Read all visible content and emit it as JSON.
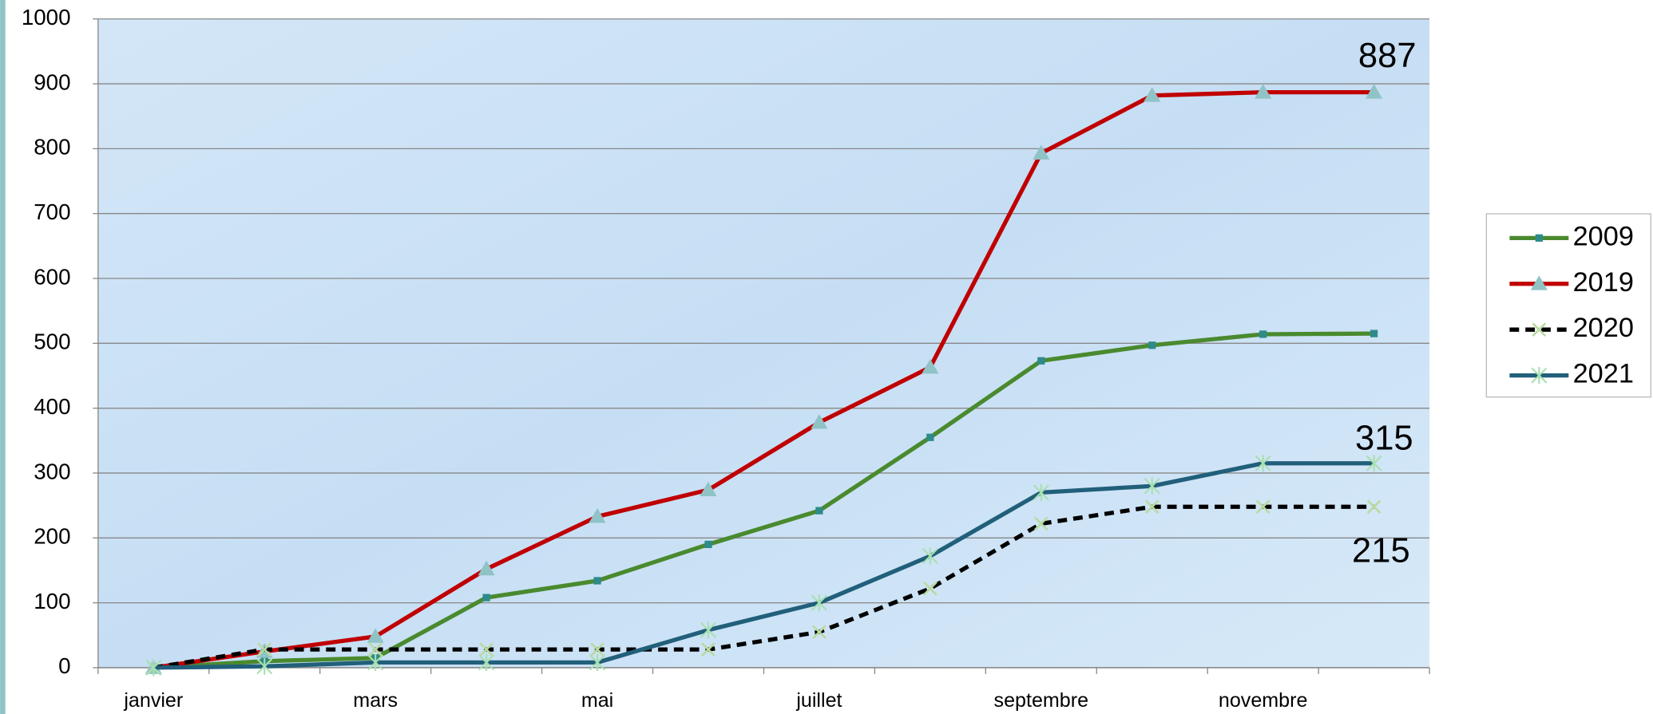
{
  "chart_data": {
    "type": "line",
    "categories": [
      "janvier",
      null,
      "mars",
      null,
      "mai",
      null,
      "juillet",
      null,
      "septembre",
      null,
      "novembre",
      null
    ],
    "series": [
      {
        "name": "2009",
        "color": "#4a8a2f",
        "marker": "square",
        "marker_color": "#2e8b8b",
        "dash": false,
        "values": [
          0,
          10,
          15,
          108,
          134,
          190,
          242,
          355,
          473,
          497,
          514,
          515
        ]
      },
      {
        "name": "2019",
        "color": "#c00000",
        "marker": "triangle",
        "marker_color": "#8fc3c6",
        "dash": false,
        "values": [
          0,
          25,
          48,
          152,
          233,
          274,
          378,
          463,
          793,
          882,
          887,
          887
        ]
      },
      {
        "name": "2020",
        "color": "#000000",
        "marker": "x",
        "marker_color": "#b9dba0",
        "dash": true,
        "values": [
          0,
          28,
          28,
          28,
          28,
          28,
          55,
          122,
          222,
          248,
          248,
          248
        ]
      },
      {
        "name": "2021",
        "color": "#215f7a",
        "marker": "star",
        "marker_color": "#a8e0b0",
        "dash": false,
        "values": [
          0,
          2,
          8,
          8,
          8,
          58,
          100,
          172,
          270,
          280,
          315,
          315
        ]
      }
    ],
    "ylim": [
      0,
      1000
    ],
    "yticks": [
      0,
      100,
      200,
      300,
      400,
      500,
      600,
      700,
      800,
      900,
      1000
    ],
    "grid": true,
    "legend": "right",
    "annotations": [
      "887",
      "315",
      "215"
    ]
  }
}
